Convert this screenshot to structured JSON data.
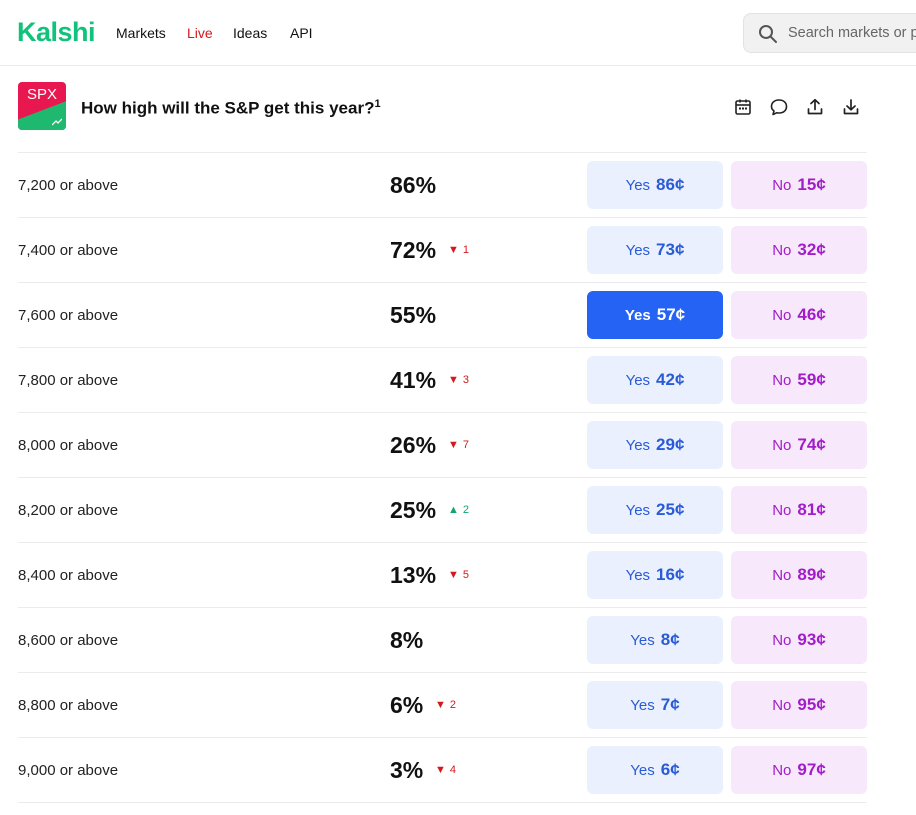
{
  "nav": {
    "logo": "Kalshi",
    "links": [
      "Markets",
      "Live",
      "Ideas",
      "API"
    ],
    "search_placeholder": "Search markets or p"
  },
  "market": {
    "ticker": "SPX",
    "title": "How high will the S&P get this year?",
    "footnote": "1",
    "icons": [
      "calendar-icon",
      "comment-icon",
      "share-icon",
      "download-icon"
    ]
  },
  "colors": {
    "brand": "#10c27a",
    "live": "#d4181d",
    "yes": "#2a5bd7",
    "yes_active": "#2563f5",
    "no": "#a31cc9"
  },
  "rows": [
    {
      "label": "7,200 or above",
      "pct": "86%",
      "delta": "",
      "dir": "",
      "yes_label": "Yes",
      "yes_price": "86¢",
      "no_label": "No",
      "no_price": "15¢",
      "active": false
    },
    {
      "label": "7,400 or above",
      "pct": "72%",
      "delta": "1",
      "dir": "down",
      "yes_label": "Yes",
      "yes_price": "73¢",
      "no_label": "No",
      "no_price": "32¢",
      "active": false
    },
    {
      "label": "7,600 or above",
      "pct": "55%",
      "delta": "",
      "dir": "",
      "yes_label": "Yes",
      "yes_price": "57¢",
      "no_label": "No",
      "no_price": "46¢",
      "active": true
    },
    {
      "label": "7,800 or above",
      "pct": "41%",
      "delta": "3",
      "dir": "down",
      "yes_label": "Yes",
      "yes_price": "42¢",
      "no_label": "No",
      "no_price": "59¢",
      "active": false
    },
    {
      "label": "8,000 or above",
      "pct": "26%",
      "delta": "7",
      "dir": "down",
      "yes_label": "Yes",
      "yes_price": "29¢",
      "no_label": "No",
      "no_price": "74¢",
      "active": false
    },
    {
      "label": "8,200 or above",
      "pct": "25%",
      "delta": "2",
      "dir": "up",
      "yes_label": "Yes",
      "yes_price": "25¢",
      "no_label": "No",
      "no_price": "81¢",
      "active": false
    },
    {
      "label": "8,400 or above",
      "pct": "13%",
      "delta": "5",
      "dir": "down",
      "yes_label": "Yes",
      "yes_price": "16¢",
      "no_label": "No",
      "no_price": "89¢",
      "active": false
    },
    {
      "label": "8,600 or above",
      "pct": "8%",
      "delta": "",
      "dir": "",
      "yes_label": "Yes",
      "yes_price": "8¢",
      "no_label": "No",
      "no_price": "93¢",
      "active": false
    },
    {
      "label": "8,800 or above",
      "pct": "6%",
      "delta": "2",
      "dir": "down",
      "yes_label": "Yes",
      "yes_price": "7¢",
      "no_label": "No",
      "no_price": "95¢",
      "active": false
    },
    {
      "label": "9,000 or above",
      "pct": "3%",
      "delta": "4",
      "dir": "down",
      "yes_label": "Yes",
      "yes_price": "6¢",
      "no_label": "No",
      "no_price": "97¢",
      "active": false
    }
  ]
}
